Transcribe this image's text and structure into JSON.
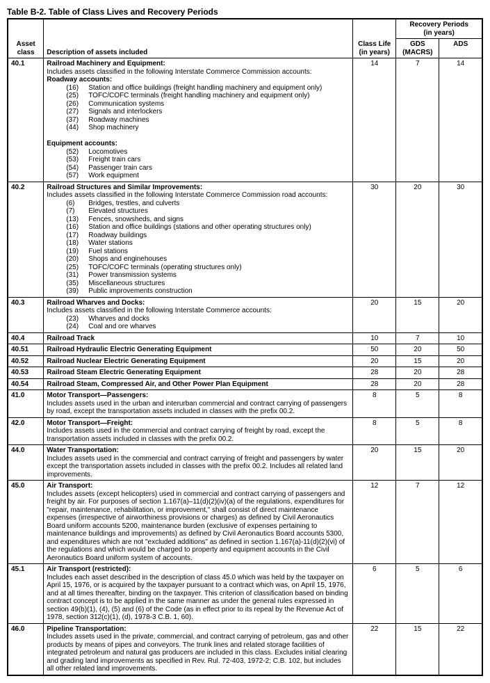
{
  "title": "Table B-2.  Table of Class Lives and Recovery Periods",
  "headers": {
    "asset_class": "Asset class",
    "description": "Description of assets included",
    "recovery_periods": "Recovery Periods\n(in years)",
    "class_life": "Class Life\n(in years)",
    "gds": "GDS\n(MACRS)",
    "ads": "ADS"
  },
  "rows": [
    {
      "asset": "40.1",
      "title": "Railroad Machinery and Equipment:",
      "intro": "Includes assets classified in the following Interstate Commerce Commission accounts:",
      "groups": [
        {
          "label": "Roadway accounts:",
          "items": [
            {
              "n": "(16)",
              "t": "Station and office buildings (freight handling machinery and equipment only)"
            },
            {
              "n": "(25)",
              "t": "TOFC/COFC terminals (freight handling machinery and equipment only)"
            },
            {
              "n": "(26)",
              "t": "Communication systems"
            },
            {
              "n": "(27)",
              "t": "Signals and interlockers"
            },
            {
              "n": "(37)",
              "t": "Roadway machines"
            },
            {
              "n": "(44)",
              "t": "Shop machinery"
            }
          ]
        },
        {
          "label": "Equipment accounts:",
          "items": [
            {
              "n": "(52)",
              "t": "Locomotives"
            },
            {
              "n": "(53)",
              "t": "Freight train cars"
            },
            {
              "n": "(54)",
              "t": "Passenger train cars"
            },
            {
              "n": "(57)",
              "t": "Work equipment"
            }
          ]
        }
      ],
      "cl": "14",
      "gds": "7",
      "ads": "14"
    },
    {
      "asset": "40.2",
      "title": "Railroad Structures and Similar Improvements:",
      "intro": "Includes assets classified in the following Interstate Commerce Commission road accounts:",
      "groups": [
        {
          "label": "",
          "items": [
            {
              "n": "(6)",
              "t": "Bridges, trestles, and culverts"
            },
            {
              "n": "(7)",
              "t": "Elevated structures"
            },
            {
              "n": "(13)",
              "t": "Fences, snowsheds, and signs"
            },
            {
              "n": "(16)",
              "t": "Station and office buildings (stations and other operating structures only)"
            },
            {
              "n": "(17)",
              "t": "Roadway buildings"
            },
            {
              "n": "(18)",
              "t": "Water stations"
            },
            {
              "n": "(19)",
              "t": "Fuel stations"
            },
            {
              "n": "(20)",
              "t": "Shops and enginehouses"
            },
            {
              "n": "(25)",
              "t": "TOFC/COFC terminals (operating structures only)"
            },
            {
              "n": "(31)",
              "t": "Power transmission systems"
            },
            {
              "n": "(35)",
              "t": "Miscellaneous structures"
            },
            {
              "n": "(39)",
              "t": "Public improvements construction"
            }
          ]
        }
      ],
      "cl": "30",
      "gds": "20",
      "ads": "30"
    },
    {
      "asset": "40.3",
      "title": "Railroad Wharves and Docks:",
      "intro": "Includes assets classified in the following Interstate Commerce accounts:",
      "groups": [
        {
          "label": "",
          "items": [
            {
              "n": "(23)",
              "t": "Wharves and docks"
            },
            {
              "n": "(24)",
              "t": "Coal and ore wharves"
            }
          ]
        }
      ],
      "cl": "20",
      "gds": "15",
      "ads": "20"
    },
    {
      "asset": "40.4",
      "title": "Railroad Track",
      "cl": "10",
      "gds": "7",
      "ads": "10"
    },
    {
      "asset": "40.51",
      "title": "Railroad Hydraulic Electric Generating Equipment",
      "cl": "50",
      "gds": "20",
      "ads": "50"
    },
    {
      "asset": "40.52",
      "title": "Railroad Nuclear Electric Generating Equipment",
      "cl": "20",
      "gds": "15",
      "ads": "20"
    },
    {
      "asset": "40.53",
      "title": "Railroad Steam Electric Generating Equipment",
      "cl": "28",
      "gds": "20",
      "ads": "28"
    },
    {
      "asset": "40.54",
      "title": "Railroad Steam, Compressed Air, and Other Power Plan Equipment",
      "cl": "28",
      "gds": "20",
      "ads": "28"
    },
    {
      "asset": "41.0",
      "title": "Motor Transport—Passengers:",
      "body": "Includes assets used in the urban and interurban commercial and contract carrying of passengers by road, except the transportation assets included in classes with the prefix 00.2.",
      "cl": "8",
      "gds": "5",
      "ads": "8"
    },
    {
      "asset": "42.0",
      "title": "Motor Transport—Freight:",
      "body": "Includes assets used in the commercial and contract carrying of freight by road, except the transportation assets included in classes with the prefix 00.2.",
      "cl": "8",
      "gds": "5",
      "ads": "8"
    },
    {
      "asset": "44.0",
      "title": "Water Transportation:",
      "body": "Includes assets used in the commercial and contract carrying of freight and passengers by water except the transportation assets included in classes with the prefix 00.2. Includes all related land improvements.",
      "cl": "20",
      "gds": "15",
      "ads": "20"
    },
    {
      "asset": "45.0",
      "title": "Air Transport:",
      "body": "Includes assets (except helicopters) used in commercial and contract carrying of passengers and freight by air. For purposes of section 1.167(a)–11(d)(2)(iv)(a) of the regulations, expenditures for \"repair, maintenance, rehabilitation, or improvement,\" shall consist of direct maintenance expenses (irrespective of airworthiness provisions or charges) as defined by Civil Aeronautics Board uniform accounts 5200, maintenance burden (exclusive of expenses pertaining to maintenance buildings and improvements) as defined by Civil Aeronautics Board accounts 5300, and expenditures which are not \"excluded additions\" as defined in section 1.167(a)-11(d)(2)(vi) of the regulations and which would be charged to property and equipment accounts in the Civil Aeronautics Board uniform system of accounts.",
      "cl": "12",
      "gds": "7",
      "ads": "12"
    },
    {
      "asset": "45.1",
      "title": "Air Transport (restricted):",
      "body": "Includes each asset described in the description of class 45.0 which was held by the taxpayer on April 15, 1976, or is acquired by the taxpayer pursuant to a contract which was, on April 15, 1976, and at all times thereafter, binding on the taxpayer. This criterion of classification based on binding contract concept is to be applied in the same manner as under the general rules expressed in section 49(b)(1), (4), (5) and (6) of the Code (as in effect prior to its repeal by the Revenue Act of 1978, section 312(c)(1), (d), 1978-3 C.B. 1, 60).",
      "cl": "6",
      "gds": "5",
      "ads": "6"
    },
    {
      "asset": "46.0",
      "title": "Pipeline Transportation:",
      "body": "Includes assets used in the private, commercial, and contract carrying of petroleum, gas and other products by means of pipes and conveyors. The trunk lines and related storage facilities of integrated petroleum and natural gas producers are included in this class. Excludes initial clearing and grading land improvements as specified in Rev. Rul. 72-403, 1972-2; C.B. 102, but includes all other related land improvements.",
      "cl": "22",
      "gds": "15",
      "ads": "22"
    }
  ]
}
